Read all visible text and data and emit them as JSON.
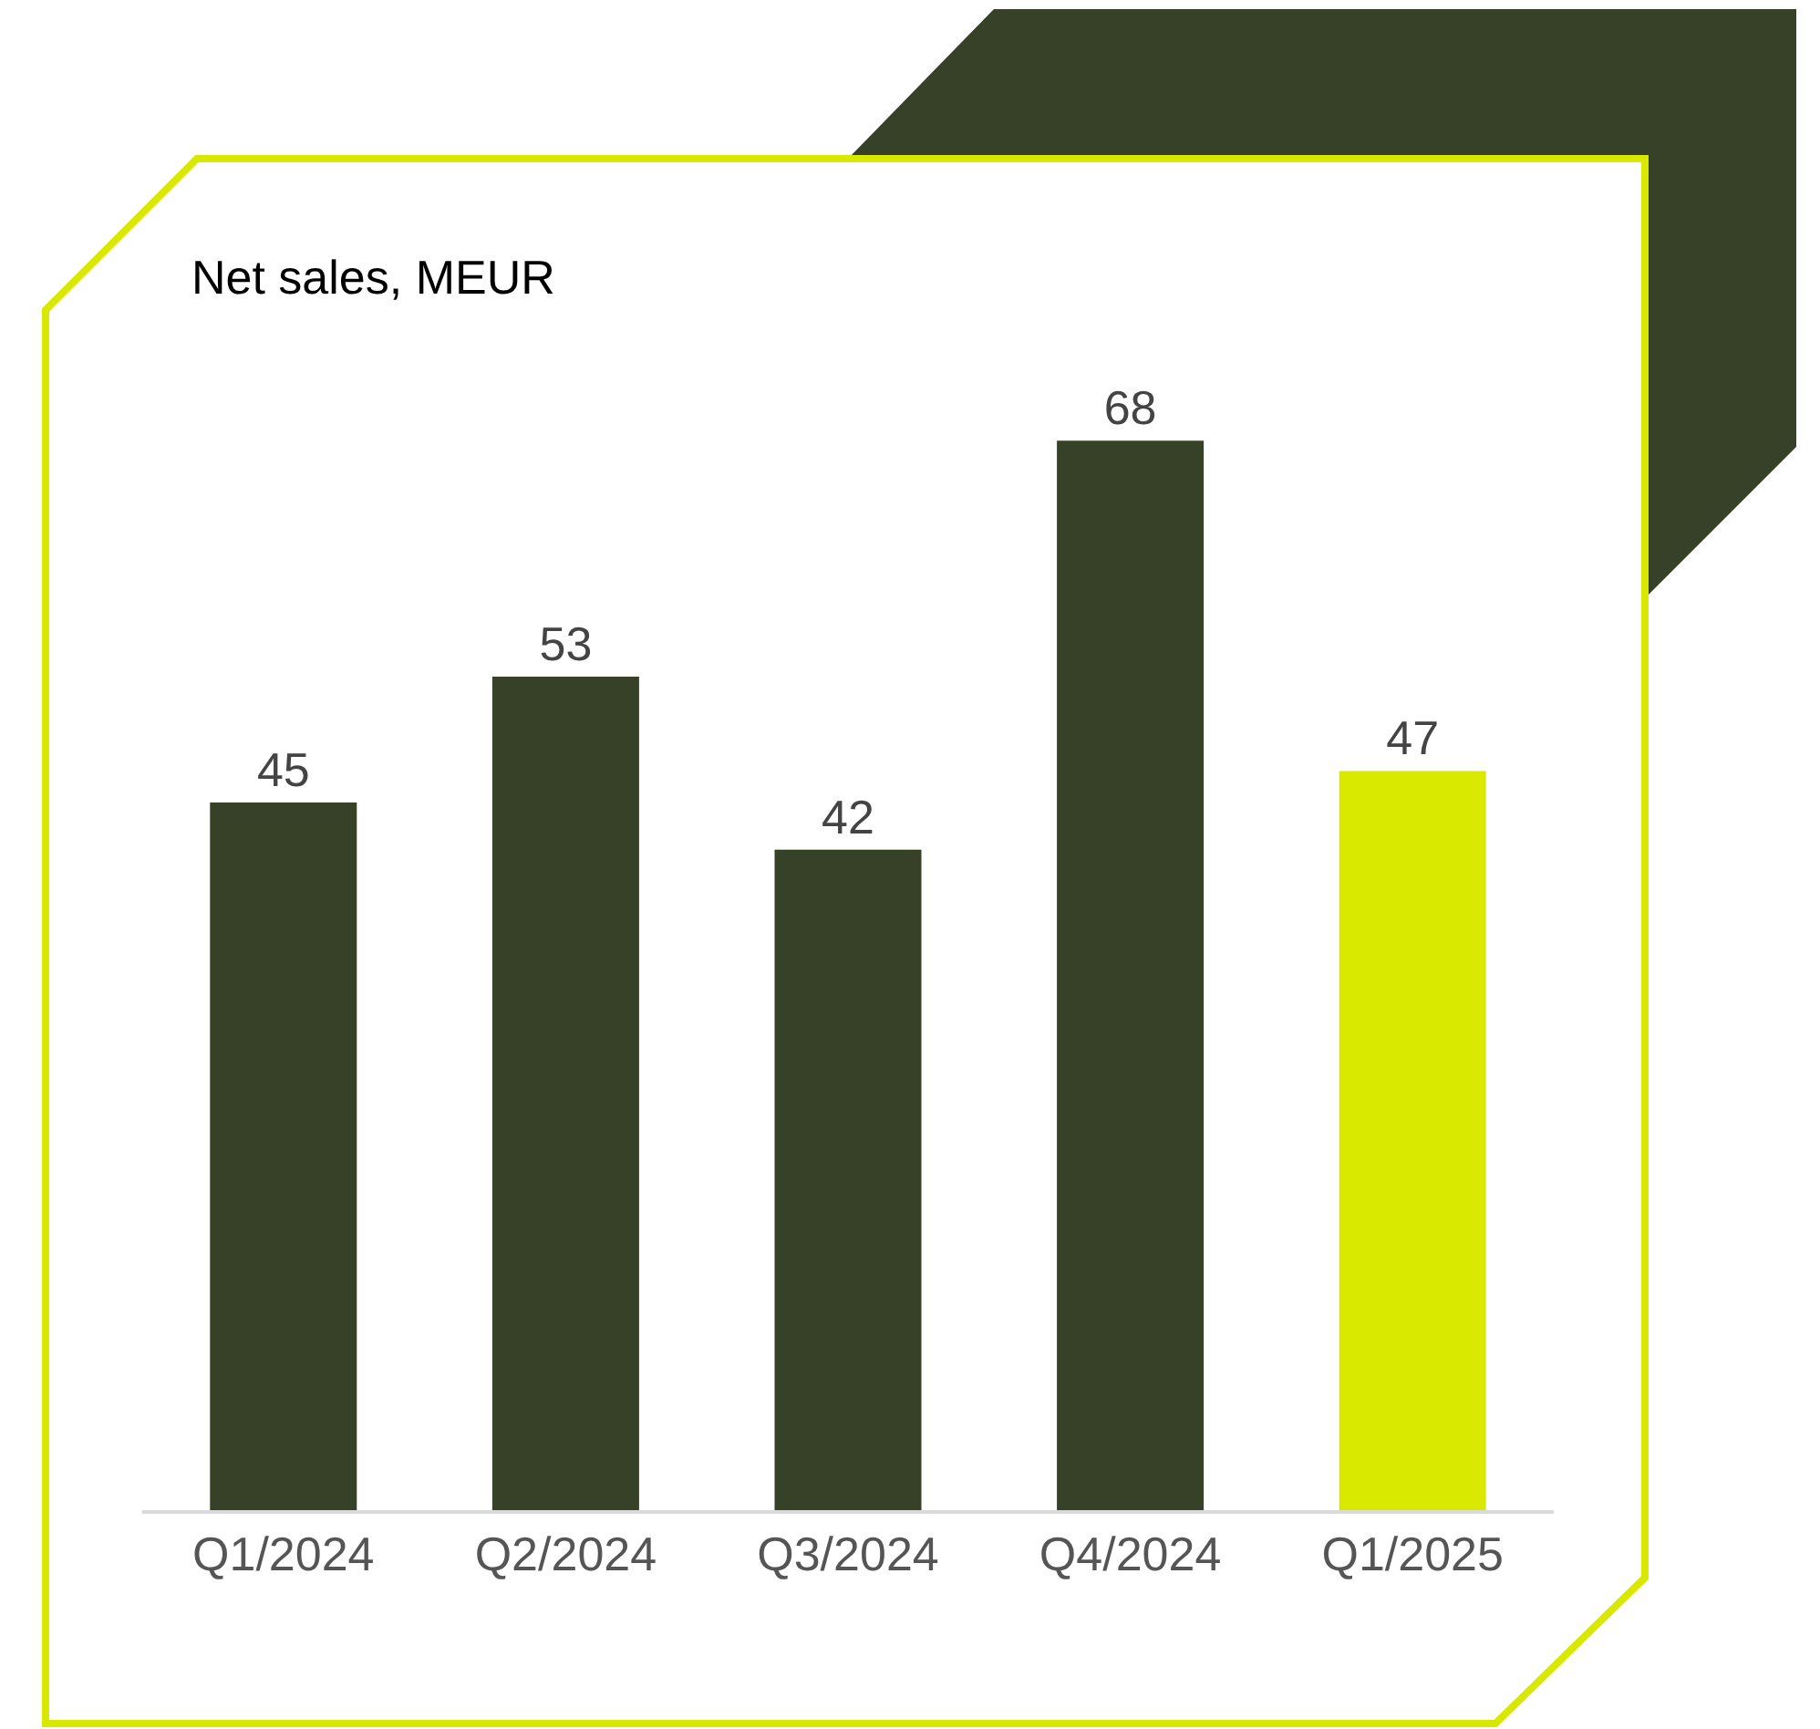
{
  "chart_data": {
    "type": "bar",
    "title": "Net sales, MEUR",
    "categories": [
      "Q1/2024",
      "Q2/2024",
      "Q3/2024",
      "Q4/2024",
      "Q1/2025"
    ],
    "values": [
      45,
      53,
      42,
      68,
      47
    ],
    "colors": [
      "#374128",
      "#374128",
      "#374128",
      "#374128",
      "#d9ea00"
    ],
    "data_labels": true
  }
}
